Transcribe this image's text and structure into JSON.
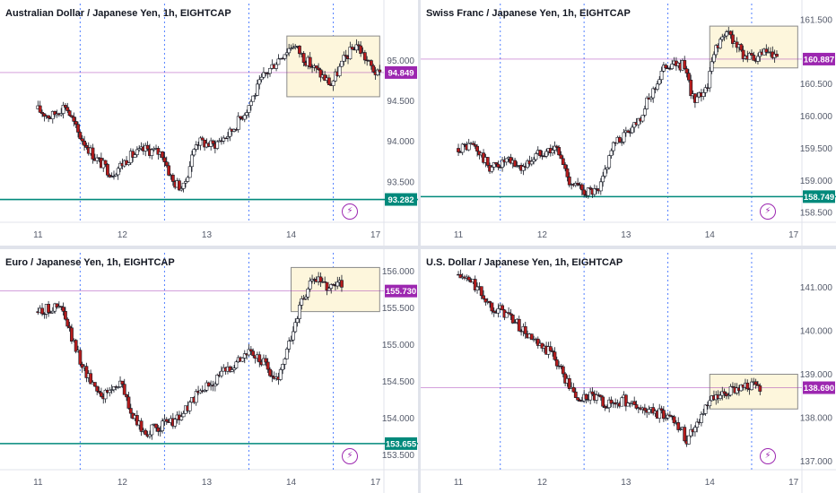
{
  "colors": {
    "up": "#ffffff",
    "down": "#b71c1c",
    "wick": "#131722",
    "support": "#00897b",
    "price_tag": "#9c27b0",
    "zone_fill": "#fdf6dc",
    "zone_stroke": "#8a8a8a",
    "session": "#2962ff",
    "axis_text": "#555b6b"
  },
  "charts": [
    {
      "title": "Australian Dollar / Japanese Yen, 1h, EIGHTCAP",
      "x_labels": [
        "11",
        "12",
        "13",
        "14",
        "17"
      ],
      "y_ticks": [
        "93.500",
        "94.000",
        "94.500",
        "95.000"
      ],
      "last_price": "94.849",
      "support": "93.282",
      "flash_icon": "lightning-icon"
    },
    {
      "title": "Swiss Franc / Japanese Yen, 1h, EIGHTCAP",
      "x_labels": [
        "11",
        "12",
        "13",
        "14",
        "17"
      ],
      "y_ticks": [
        "158.500",
        "159.000",
        "159.500",
        "160.000",
        "160.500",
        "161.500"
      ],
      "last_price": "160.887",
      "support": "158.749",
      "flash_icon": "lightning-icon"
    },
    {
      "title": "Euro / Japanese Yen, 1h, EIGHTCAP",
      "x_labels": [
        "11",
        "12",
        "13",
        "14",
        "17"
      ],
      "y_ticks": [
        "153.500",
        "154.000",
        "154.500",
        "155.000",
        "155.500",
        "156.000"
      ],
      "last_price": "155.730",
      "support": "153.655",
      "flash_icon": "lightning-icon"
    },
    {
      "title": "U.S. Dollar / Japanese Yen, 1h, EIGHTCAP",
      "x_labels": [
        "11",
        "12",
        "13",
        "14",
        "17"
      ],
      "y_ticks": [
        "137.000",
        "138.000",
        "139.000",
        "140.000",
        "141.000"
      ],
      "last_price": "138.690",
      "support": "",
      "flash_icon": "lightning-icon"
    }
  ],
  "chart_data": [
    {
      "type": "candlestick",
      "title": "Australian Dollar / Japanese Yen, 1h, EIGHTCAP",
      "ylim": [
        93.0,
        95.7
      ],
      "session_breaks": [
        0.5,
        1.5,
        2.5,
        3.5
      ],
      "support_level": 93.282,
      "last_price": 94.849,
      "zone": {
        "x_from": 2.95,
        "x_to": 4.05,
        "y_from": 94.55,
        "y_to": 95.3
      },
      "path": [
        [
          0,
          94.4
        ],
        [
          0.18,
          94.3
        ],
        [
          0.35,
          94.45
        ],
        [
          0.5,
          94.1
        ],
        [
          0.7,
          93.8
        ],
        [
          0.9,
          93.6
        ],
        [
          1.1,
          93.8
        ],
        [
          1.3,
          93.9
        ],
        [
          1.5,
          93.85
        ],
        [
          1.62,
          93.5
        ],
        [
          1.75,
          93.42
        ],
        [
          1.9,
          94.0
        ],
        [
          2.1,
          93.95
        ],
        [
          2.3,
          94.1
        ],
        [
          2.5,
          94.4
        ],
        [
          2.7,
          94.8
        ],
        [
          2.9,
          95.05
        ],
        [
          3.05,
          95.2
        ],
        [
          3.2,
          95.0
        ],
        [
          3.35,
          94.85
        ],
        [
          3.5,
          94.7
        ],
        [
          3.65,
          95.0
        ],
        [
          3.8,
          95.2
        ],
        [
          3.95,
          94.95
        ],
        [
          4.05,
          94.82
        ]
      ]
    },
    {
      "type": "candlestick",
      "title": "Swiss Franc / Japanese Yen, 1h, EIGHTCAP",
      "ylim": [
        158.35,
        161.75
      ],
      "session_breaks": [
        0.5,
        1.5,
        2.5,
        3.5
      ],
      "support_level": 158.749,
      "last_price": 160.887,
      "zone": {
        "x_from": 3.0,
        "x_to": 4.05,
        "y_from": 160.75,
        "y_to": 161.4
      },
      "path": [
        [
          0,
          159.5
        ],
        [
          0.2,
          159.55
        ],
        [
          0.4,
          159.2
        ],
        [
          0.6,
          159.3
        ],
        [
          0.8,
          159.2
        ],
        [
          1.0,
          159.45
        ],
        [
          1.2,
          159.5
        ],
        [
          1.35,
          159.0
        ],
        [
          1.5,
          158.85
        ],
        [
          1.7,
          158.8
        ],
        [
          1.85,
          159.5
        ],
        [
          2.0,
          159.7
        ],
        [
          2.2,
          160.0
        ],
        [
          2.35,
          160.4
        ],
        [
          2.5,
          160.8
        ],
        [
          2.7,
          160.8
        ],
        [
          2.85,
          160.2
        ],
        [
          3.0,
          160.5
        ],
        [
          3.1,
          161.1
        ],
        [
          3.25,
          161.3
        ],
        [
          3.4,
          161.0
        ],
        [
          3.55,
          160.85
        ],
        [
          3.7,
          161.0
        ],
        [
          3.8,
          160.88
        ]
      ]
    },
    {
      "type": "candlestick",
      "title": "Euro / Japanese Yen, 1h, EIGHTCAP",
      "ylim": [
        153.3,
        156.25
      ],
      "session_breaks": [
        0.5,
        1.5,
        2.5,
        3.5
      ],
      "support_level": 153.655,
      "last_price": 155.73,
      "zone": {
        "x_from": 3.0,
        "x_to": 4.05,
        "y_from": 155.45,
        "y_to": 156.05
      },
      "path": [
        [
          0,
          155.45
        ],
        [
          0.2,
          155.5
        ],
        [
          0.3,
          155.5
        ],
        [
          0.45,
          155.0
        ],
        [
          0.6,
          154.6
        ],
        [
          0.8,
          154.3
        ],
        [
          1.0,
          154.5
        ],
        [
          1.15,
          154.0
        ],
        [
          1.3,
          153.8
        ],
        [
          1.5,
          153.9
        ],
        [
          1.7,
          154.0
        ],
        [
          1.9,
          154.3
        ],
        [
          2.1,
          154.5
        ],
        [
          2.3,
          154.7
        ],
        [
          2.5,
          154.9
        ],
        [
          2.7,
          154.75
        ],
        [
          2.85,
          154.5
        ],
        [
          3.0,
          155.0
        ],
        [
          3.15,
          155.6
        ],
        [
          3.3,
          155.9
        ],
        [
          3.45,
          155.8
        ],
        [
          3.6,
          155.85
        ]
      ]
    },
    {
      "type": "candlestick",
      "title": "U.S. Dollar / Japanese Yen, 1h, EIGHTCAP",
      "ylim": [
        136.8,
        141.8
      ],
      "session_breaks": [
        0.5,
        1.5,
        2.5,
        3.5
      ],
      "support_level": null,
      "last_price": 138.69,
      "zone": {
        "x_from": 3.0,
        "x_to": 4.05,
        "y_from": 138.2,
        "y_to": 139.0
      },
      "path": [
        [
          0,
          141.3
        ],
        [
          0.2,
          141.1
        ],
        [
          0.4,
          140.6
        ],
        [
          0.6,
          140.4
        ],
        [
          0.8,
          140.0
        ],
        [
          1.0,
          139.6
        ],
        [
          1.15,
          139.5
        ],
        [
          1.3,
          138.9
        ],
        [
          1.45,
          138.4
        ],
        [
          1.6,
          138.5
        ],
        [
          1.8,
          138.3
        ],
        [
          2.0,
          138.4
        ],
        [
          2.2,
          138.2
        ],
        [
          2.4,
          138.1
        ],
        [
          2.6,
          138.0
        ],
        [
          2.75,
          137.5
        ],
        [
          2.9,
          138.0
        ],
        [
          3.05,
          138.4
        ],
        [
          3.2,
          138.5
        ],
        [
          3.35,
          138.7
        ],
        [
          3.5,
          138.75
        ],
        [
          3.6,
          138.69
        ]
      ]
    }
  ]
}
